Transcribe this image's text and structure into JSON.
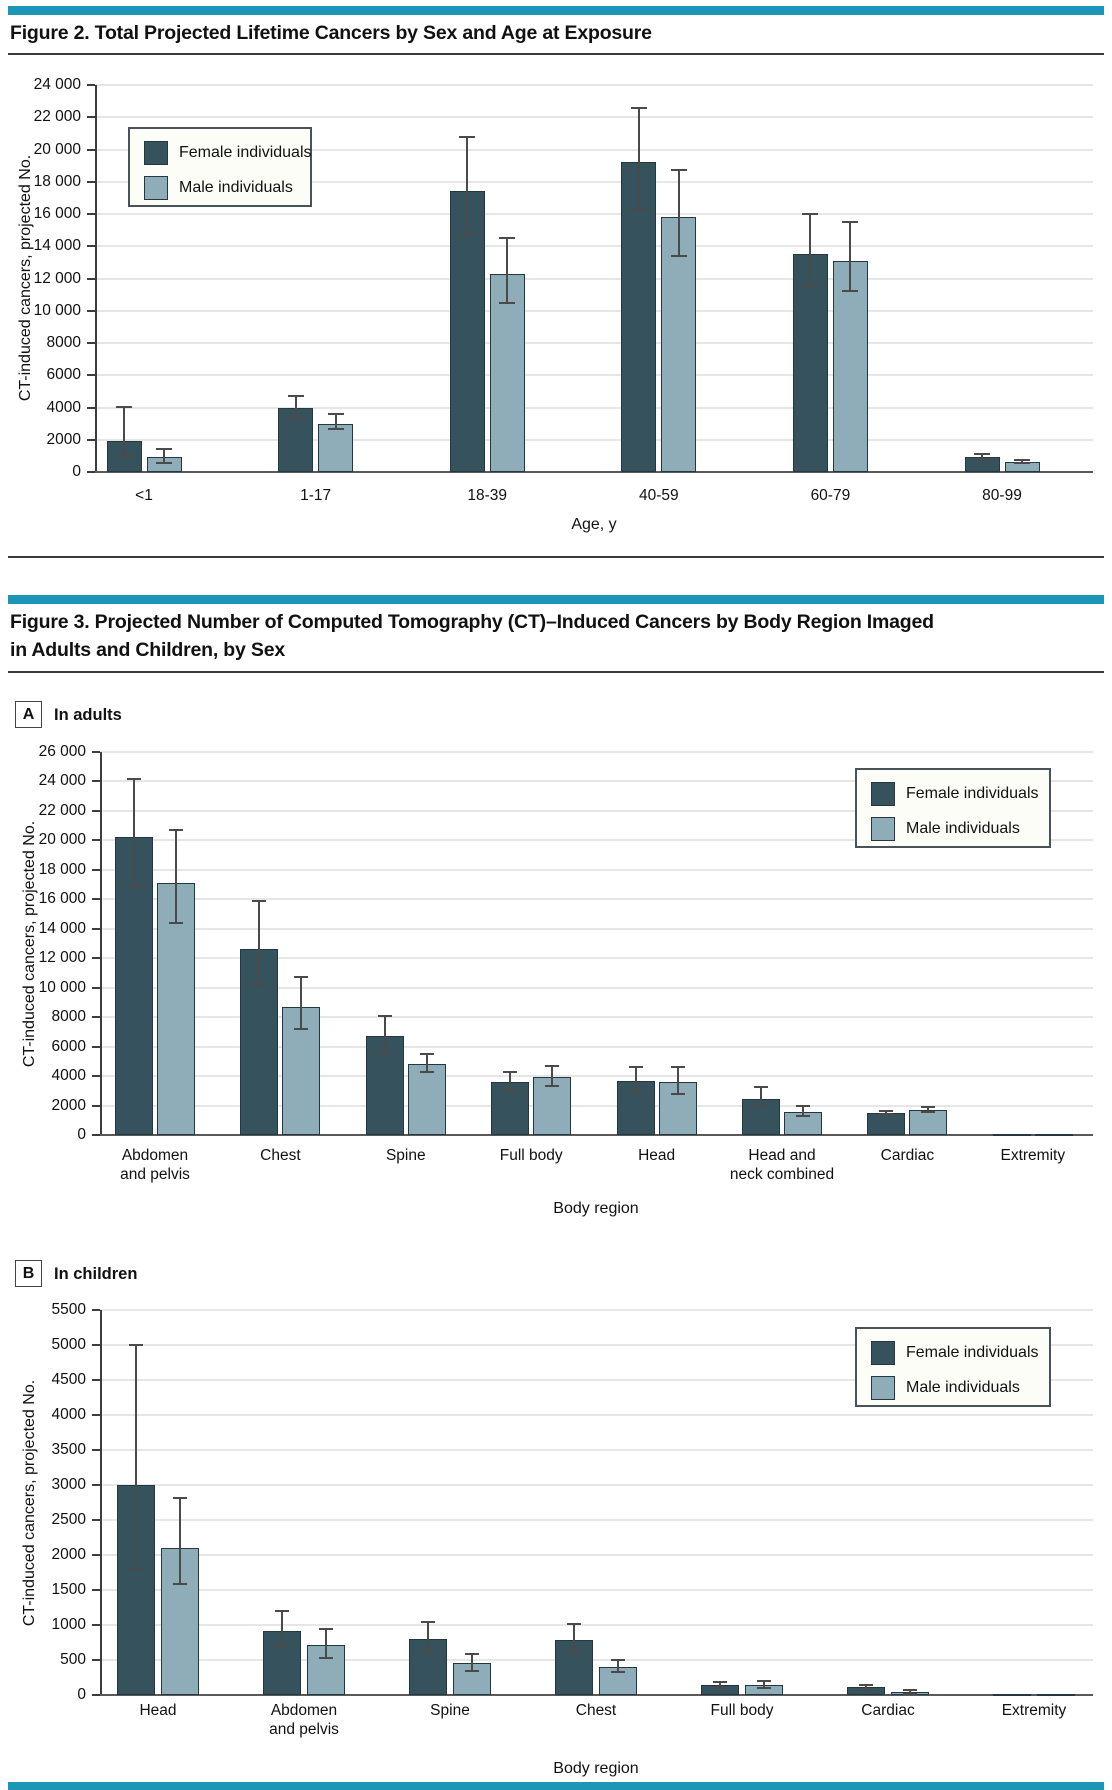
{
  "page": {
    "accent_teal": "#1b96b6",
    "rule_color": "#3a3a3a"
  },
  "figure2": {
    "title": "Figure 2. Total Projected Lifetime Cancers by Sex and Age at Exposure"
  },
  "figure3": {
    "title_line1": "Figure 3. Projected Number of Computed Tomography (CT)–Induced Cancers by Body Region Imaged",
    "title_line2": "in Adults and Children, by Sex",
    "panel_a_letter": "A",
    "panel_a_title": "In adults",
    "panel_b_letter": "B",
    "panel_b_title": "In children"
  },
  "colors": {
    "female": "#35525d",
    "male": "#8fadb8"
  },
  "chart_data": [
    {
      "id": "fig2-age-chart",
      "type": "bar",
      "title": "Total projected lifetime cancers by sex and age at exposure",
      "xlabel": "Age, y",
      "ylabel": "CT-induced cancers, projected No.",
      "ylim": [
        0,
        24000
      ],
      "ytick_step": 2000,
      "grid": true,
      "legend_position": "top-left",
      "ytick_labels": [
        "24 000",
        "22 000",
        "20 000",
        "18 000",
        "16 000",
        "14 000",
        "12 000",
        "10 000",
        "8000",
        "6000",
        "4000",
        "2000",
        "0"
      ],
      "categories": [
        "<1",
        "1-17",
        "18-39",
        "40-59",
        "60-79",
        "80-99"
      ],
      "series": [
        {
          "name": "Female individuals",
          "color": "#35525d",
          "values": [
            1900,
            4000,
            17400,
            19200,
            13500,
            900
          ],
          "errors": [
            [
              1000,
              4050
            ],
            [
              3300,
              4700
            ],
            [
              14700,
              20800
            ],
            [
              16300,
              22600
            ],
            [
              11500,
              16000
            ],
            [
              750,
              1100
            ]
          ]
        },
        {
          "name": "Male individuals",
          "color": "#8fadb8",
          "values": [
            950,
            3000,
            12300,
            15800,
            13100,
            650
          ],
          "errors": [
            [
              550,
              1450
            ],
            [
              2650,
              3600
            ],
            [
              10450,
              14500
            ],
            [
              13400,
              18700
            ],
            [
              11200,
              15500
            ],
            [
              550,
              750
            ]
          ]
        }
      ]
    },
    {
      "id": "panel-a-adults-chart",
      "type": "bar",
      "title": "In adults",
      "xlabel": "Body region",
      "ylabel": "CT-induced cancers, projected No.",
      "ylim": [
        0,
        26000
      ],
      "ytick_step": 2000,
      "grid": true,
      "legend_position": "top-right",
      "ytick_labels": [
        "26 000",
        "24 000",
        "22 000",
        "20 000",
        "18 000",
        "16 000",
        "14 000",
        "12 000",
        "10 000",
        "8000",
        "6000",
        "4000",
        "2000",
        "0"
      ],
      "categories": [
        "Abdomen\nand pelvis",
        "Chest",
        "Spine",
        "Full body",
        "Head",
        "Head and\nneck combined",
        "Cardiac",
        "Extremity"
      ],
      "series": [
        {
          "name": "Female individuals",
          "color": "#35525d",
          "values": [
            20200,
            12600,
            6700,
            3600,
            3650,
            2450,
            1500,
            40
          ],
          "errors": [
            [
              16900,
              24200
            ],
            [
              10200,
              15900
            ],
            [
              5600,
              8100
            ],
            [
              3000,
              4300
            ],
            [
              2900,
              4650
            ],
            [
              2000,
              3250
            ],
            [
              1400,
              1650
            ],
            null
          ]
        },
        {
          "name": "Male individuals",
          "color": "#8fadb8",
          "values": [
            17100,
            8700,
            4800,
            3950,
            3600,
            1550,
            1700,
            40
          ],
          "errors": [
            [
              14400,
              20700
            ],
            [
              7200,
              10700
            ],
            [
              4300,
              5500
            ],
            [
              3300,
              4700
            ],
            [
              2800,
              4600
            ],
            [
              1300,
              1950
            ],
            [
              1550,
              1900
            ],
            null
          ]
        }
      ]
    },
    {
      "id": "panel-b-children-chart",
      "type": "bar",
      "title": "In children",
      "xlabel": "Body region",
      "ylabel": "CT-induced cancers, projected No.",
      "ylim": [
        0,
        5500
      ],
      "ytick_step": 500,
      "grid": true,
      "legend_position": "top-right",
      "ytick_labels": [
        "5500",
        "5000",
        "4500",
        "4000",
        "3500",
        "3000",
        "2500",
        "2000",
        "1500",
        "1000",
        "500",
        "0"
      ],
      "categories": [
        "Head",
        "Abdomen\nand pelvis",
        "Spine",
        "Chest",
        "Full body",
        "Cardiac",
        "Extremity"
      ],
      "series": [
        {
          "name": "Female individuals",
          "color": "#35525d",
          "values": [
            3000,
            920,
            800,
            790,
            140,
            110,
            10
          ],
          "errors": [
            [
              1800,
              5000
            ],
            [
              700,
              1200
            ],
            [
              620,
              1050
            ],
            [
              610,
              1020
            ],
            [
              100,
              190
            ],
            [
              85,
              140
            ],
            null
          ]
        },
        {
          "name": "Male individuals",
          "color": "#8fadb8",
          "values": [
            2100,
            710,
            460,
            400,
            150,
            40,
            10
          ],
          "errors": [
            [
              1580,
              2810
            ],
            [
              530,
              940
            ],
            [
              350,
              590
            ],
            [
              330,
              500
            ],
            [
              100,
              200
            ],
            [
              20,
              65
            ],
            null
          ]
        }
      ]
    }
  ]
}
